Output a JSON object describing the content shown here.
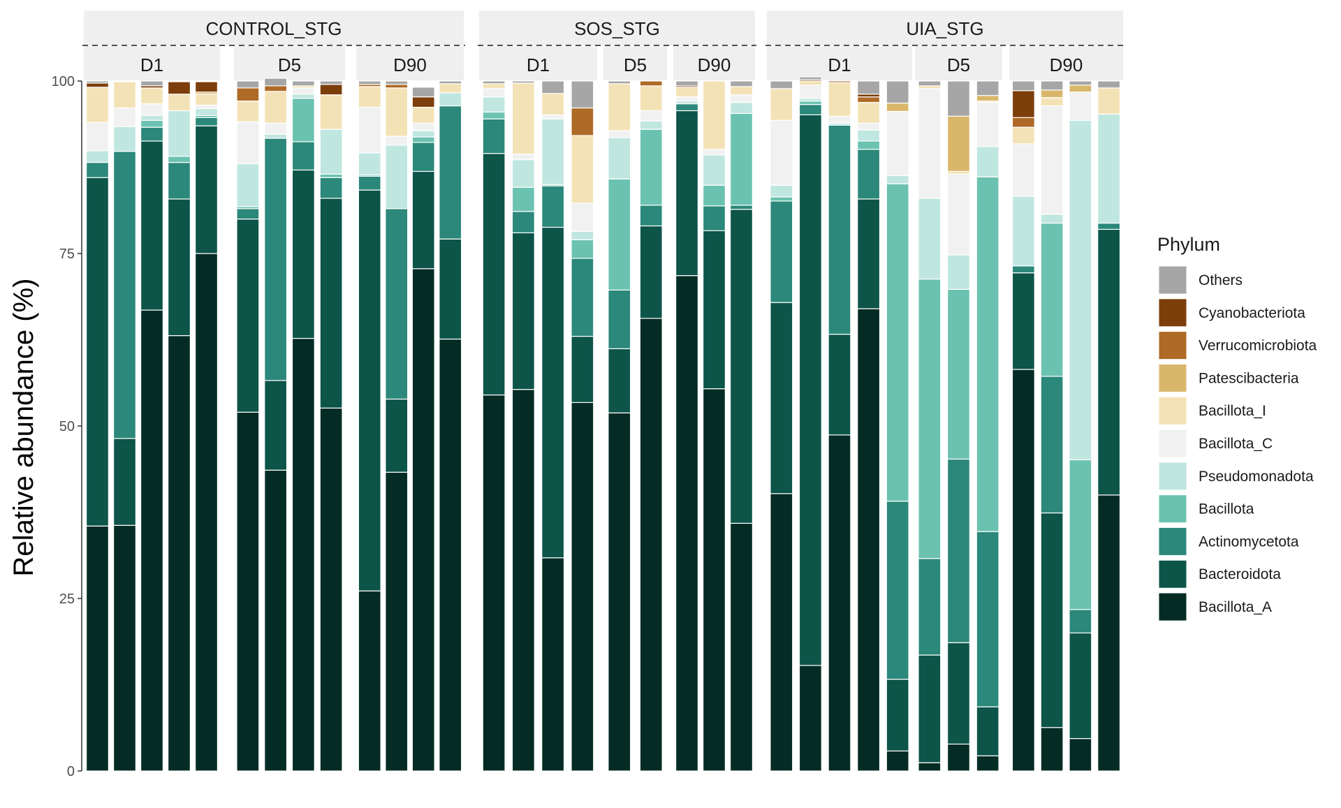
{
  "chart_data": {
    "type": "bar",
    "stacked": true,
    "ylabel": "Relative abundance (%)",
    "xlabel": "",
    "ylim": [
      0,
      100
    ],
    "yticks": [
      0,
      25,
      50,
      75,
      100
    ],
    "grid": false,
    "legend": {
      "title": "Phylum",
      "position": "right",
      "entries": [
        "Others",
        "Cyanobacteriota",
        "Verrucomicrobiota",
        "Patescibacteria",
        "Bacillota_I",
        "Bacillota_C",
        "Pseudomonadota",
        "Bacillota",
        "Actinomycetota",
        "Bacteroidota",
        "Bacillota_A"
      ]
    },
    "colors": {
      "Bacillota_A": "#042c24",
      "Bacteroidota": "#0d5449",
      "Actinomycetota": "#2b887a",
      "Bacillota": "#6cc2b0",
      "Pseudomonadota": "#c0e6e0",
      "Bacillota_C": "#f1f1f1",
      "Bacillota_I": "#f4e2b7",
      "Patescibacteria": "#d9b76a",
      "Verrucomicrobiota": "#ae6a26",
      "Cyanobacteriota": "#7c3e0b",
      "Others": "#a6a6a6"
    },
    "stack_order": [
      "Bacillota_A",
      "Bacteroidota",
      "Actinomycetota",
      "Bacillota",
      "Pseudomonadota",
      "Bacillota_C",
      "Bacillota_I",
      "Patescibacteria",
      "Verrucomicrobiota",
      "Cyanobacteriota",
      "Others"
    ],
    "groups": [
      {
        "name": "CONTROL_STG",
        "panels": [
          {
            "name": "D1",
            "bars": [
              [
                35.5,
                50.5,
                2.2,
                0,
                1.7,
                4.1,
                5.1,
                0,
                0,
                0.6,
                0.3
              ],
              [
                35.6,
                12.6,
                41.6,
                0,
                3.6,
                2.7,
                3.8,
                0,
                0,
                0,
                0.1
              ],
              [
                66.8,
                24.5,
                2.0,
                1.0,
                0.7,
                1.7,
                2.3,
                0,
                0,
                0.3,
                0.7
              ],
              [
                63.1,
                19.8,
                5.3,
                0.9,
                6.6,
                0,
                2.4,
                0,
                0,
                1.8,
                0.1
              ],
              [
                75.0,
                18.5,
                1.2,
                0.3,
                1.0,
                0.5,
                1.6,
                0.3,
                0,
                1.5,
                0.1
              ]
            ]
          },
          {
            "name": "D5",
            "bars": [
              [
                52.0,
                28.0,
                1.5,
                0.3,
                6.2,
                6.1,
                3.0,
                0,
                1.9,
                0,
                1.0
              ],
              [
                43.6,
                13.0,
                35.1,
                0,
                0.6,
                1.6,
                4.6,
                0,
                0.8,
                0,
                1.1
              ],
              [
                62.7,
                24.4,
                4.1,
                6.3,
                0.6,
                0.9,
                0.3,
                0,
                0,
                0,
                0.7
              ],
              [
                52.6,
                30.4,
                3.0,
                0.5,
                6.5,
                0,
                5.0,
                0,
                0,
                1.5,
                0.5
              ]
            ]
          },
          {
            "name": "D90",
            "bars": [
              [
                26.1,
                58.1,
                2.0,
                0.2,
                3.2,
                6.6,
                3.0,
                0,
                0.3,
                0,
                0.5
              ],
              [
                43.3,
                10.6,
                27.6,
                0,
                9.2,
                1.3,
                7.0,
                0,
                0.5,
                0,
                0.5
              ],
              [
                72.8,
                14.1,
                4.2,
                0.8,
                0.9,
                1.1,
                2.3,
                0,
                0,
                1.5,
                1.4
              ],
              [
                62.6,
                14.5,
                19.3,
                0,
                1.9,
                0,
                1.3,
                0,
                0,
                0,
                0.4
              ]
            ]
          }
        ]
      },
      {
        "name": "SOS_STG",
        "panels": [
          {
            "name": "D1",
            "bars": [
              [
                54.5,
                35.0,
                5.0,
                1.0,
                2.2,
                1.2,
                0.7,
                0,
                0,
                0,
                0.4
              ],
              [
                55.3,
                22.7,
                3.1,
                3.5,
                4.0,
                0.8,
                10.3,
                0,
                0,
                0,
                0.3
              ],
              [
                30.9,
                47.9,
                6.0,
                0.2,
                9.5,
                0.6,
                3.1,
                0,
                0,
                0,
                1.8
              ],
              [
                53.4,
                9.6,
                11.3,
                2.7,
                1.2,
                4.1,
                9.8,
                0,
                4.0,
                0,
                3.9
              ]
            ]
          },
          {
            "name": "D5",
            "bars": [
              [
                51.9,
                9.3,
                8.5,
                16.1,
                6.0,
                1.0,
                6.8,
                0,
                0,
                0,
                0.4
              ],
              [
                65.6,
                13.4,
                3.0,
                11.0,
                1.2,
                1.5,
                3.6,
                0,
                0.7,
                0,
                0
              ]
            ]
          },
          {
            "name": "D90",
            "bars": [
              [
                71.8,
                23.9,
                1.0,
                0,
                0.4,
                0.6,
                1.4,
                0,
                0,
                0.2,
                0.7
              ],
              [
                55.4,
                22.9,
                3.6,
                3.0,
                4.4,
                0.8,
                9.9,
                0,
                0,
                0,
                0
              ],
              [
                35.9,
                45.5,
                0.6,
                13.3,
                1.6,
                1.1,
                1.2,
                0,
                0,
                0,
                0.8
              ]
            ]
          }
        ]
      },
      {
        "name": "UIA_STG",
        "panels": [
          {
            "name": "D1",
            "bars": [
              [
                40.2,
                27.7,
                14.7,
                0.6,
                1.7,
                9.4,
                4.6,
                0,
                0,
                0,
                1.1
              ],
              [
                15.3,
                79.8,
                1.5,
                0.5,
                0.4,
                1.9,
                0.6,
                0,
                0,
                0.2,
                0.4
              ],
              [
                48.7,
                14.6,
                30.3,
                0,
                0.3,
                1.0,
                4.9,
                0,
                0,
                0.2,
                0
              ],
              [
                67.0,
                15.9,
                7.2,
                1.2,
                1.6,
                1.0,
                3.0,
                0,
                0.8,
                0.4,
                1.9
              ],
              [
                2.9,
                10.4,
                25.8,
                46.0,
                1.2,
                9.3,
                0,
                1.2,
                0,
                0,
                3.2
              ]
            ]
          },
          {
            "name": "D5",
            "bars": [
              [
                1.2,
                15.6,
                14.0,
                40.5,
                11.7,
                15.9,
                0.4,
                0,
                0,
                0,
                0.7
              ],
              [
                3.9,
                14.7,
                26.6,
                24.6,
                5.0,
                11.7,
                0.4,
                8.0,
                0,
                0,
                5.1
              ],
              [
                2.2,
                7.1,
                25.4,
                51.4,
                4.4,
                6.4,
                0.2,
                0.8,
                0,
                0,
                2.1
              ]
            ]
          },
          {
            "name": "D90",
            "bars": [
              [
                58.2,
                14.0,
                1.0,
                0,
                10.1,
                7.6,
                2.4,
                0,
                1.4,
                3.9,
                1.4
              ],
              [
                6.3,
                31.1,
                19.8,
                22.2,
                1.3,
                15.7,
                1.2,
                1.1,
                0,
                0,
                1.3
              ],
              [
                4.7,
                15.3,
                3.4,
                21.7,
                49.2,
                4.1,
                0,
                1.0,
                0,
                0,
                0.6
              ],
              [
                40.0,
                38.5,
                0.9,
                0,
                15.8,
                0,
                3.8,
                0,
                0,
                0,
                1.0
              ]
            ]
          }
        ]
      }
    ]
  }
}
